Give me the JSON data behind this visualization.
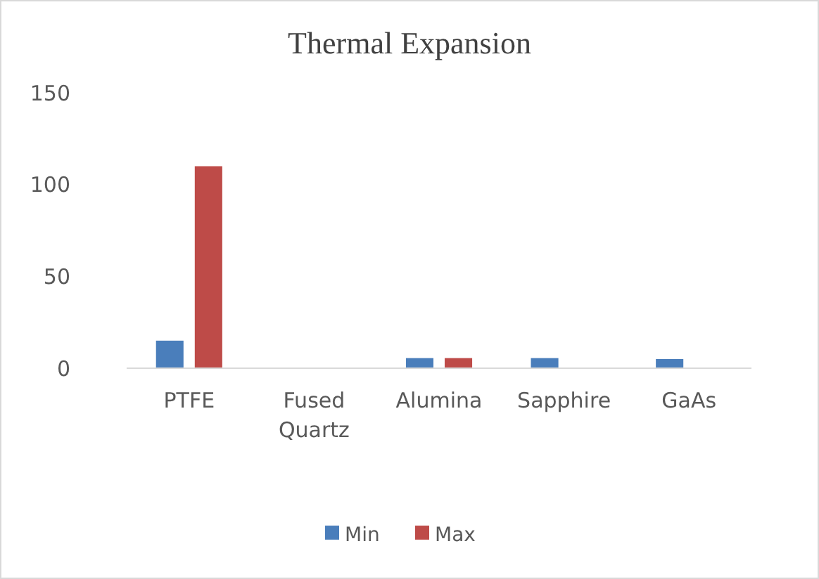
{
  "chart_data": {
    "type": "bar",
    "title": "Thermal Expansion",
    "categories": [
      "PTFE",
      "Fused Quartz",
      "Alumina",
      "Sapphire",
      "GaAs"
    ],
    "series": [
      {
        "name": "Min",
        "color": "#4a7ebb",
        "values": [
          15,
          null,
          5.5,
          5.5,
          5
        ]
      },
      {
        "name": "Max",
        "color": "#be4b48",
        "values": [
          110,
          null,
          5.5,
          null,
          null
        ]
      }
    ],
    "ylim": [
      0,
      150
    ],
    "yticks": [
      0,
      50,
      100,
      150
    ],
    "grid": false,
    "legend": "bottom"
  }
}
